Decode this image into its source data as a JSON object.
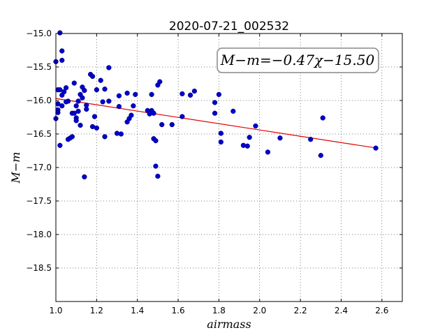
{
  "chart_data": {
    "type": "scatter",
    "title": "2020-07-21_002532",
    "xlabel": "airmass",
    "ylabel": "M−m",
    "xlim": [
      1.0,
      2.7
    ],
    "ylim": [
      -15.0,
      -19.0
    ],
    "y_inverted": true,
    "grid": true,
    "x_ticks": [
      "1.0",
      "1.2",
      "1.4",
      "1.6",
      "1.8",
      "2.0",
      "2.2",
      "2.4",
      "2.6"
    ],
    "y_ticks": [
      "−15.0",
      "−15.5",
      "−16.0",
      "−16.5",
      "−17.0",
      "−17.5",
      "−18.0",
      "−18.5"
    ],
    "annotation": "M−m=−0.47χ−15.50",
    "fit_line": {
      "slope": -0.47,
      "intercept": -15.5,
      "x_range": [
        1.0,
        2.57
      ],
      "color": "#e00000"
    },
    "point_color": "#0000cc",
    "points": [
      [
        1.0,
        -16.27
      ],
      [
        1.0,
        -15.42
      ],
      [
        1.01,
        -15.84
      ],
      [
        1.01,
        -16.14
      ],
      [
        1.01,
        -16.18
      ],
      [
        1.01,
        -16.05
      ],
      [
        1.02,
        -14.99
      ],
      [
        1.02,
        -15.84
      ],
      [
        1.02,
        -16.67
      ],
      [
        1.03,
        -15.92
      ],
      [
        1.03,
        -16.08
      ],
      [
        1.03,
        -15.26
      ],
      [
        1.03,
        -15.4
      ],
      [
        1.04,
        -15.87
      ],
      [
        1.05,
        -15.81
      ],
      [
        1.05,
        -16.02
      ],
      [
        1.06,
        -16.58
      ],
      [
        1.06,
        -16.01
      ],
      [
        1.07,
        -16.56
      ],
      [
        1.08,
        -16.54
      ],
      [
        1.08,
        -16.19
      ],
      [
        1.09,
        -16.19
      ],
      [
        1.09,
        -15.74
      ],
      [
        1.1,
        -16.26
      ],
      [
        1.1,
        -16.3
      ],
      [
        1.1,
        -16.08
      ],
      [
        1.11,
        -16.01
      ],
      [
        1.11,
        -16.16
      ],
      [
        1.12,
        -15.91
      ],
      [
        1.12,
        -16.37
      ],
      [
        1.13,
        -15.96
      ],
      [
        1.13,
        -15.8
      ],
      [
        1.14,
        -15.85
      ],
      [
        1.14,
        -17.14
      ],
      [
        1.15,
        -16.13
      ],
      [
        1.15,
        -16.07
      ],
      [
        1.17,
        -15.61
      ],
      [
        1.18,
        -15.64
      ],
      [
        1.18,
        -16.39
      ],
      [
        1.19,
        -16.24
      ],
      [
        1.2,
        -15.84
      ],
      [
        1.2,
        -16.41
      ],
      [
        1.22,
        -15.7
      ],
      [
        1.23,
        -16.02
      ],
      [
        1.24,
        -15.83
      ],
      [
        1.24,
        -16.54
      ],
      [
        1.26,
        -16.01
      ],
      [
        1.26,
        -15.51
      ],
      [
        1.3,
        -16.49
      ],
      [
        1.31,
        -16.09
      ],
      [
        1.31,
        -15.93
      ],
      [
        1.32,
        -16.5
      ],
      [
        1.35,
        -15.89
      ],
      [
        1.35,
        -16.32
      ],
      [
        1.36,
        -16.27
      ],
      [
        1.37,
        -16.22
      ],
      [
        1.38,
        -16.08
      ],
      [
        1.39,
        -15.91
      ],
      [
        1.45,
        -16.15
      ],
      [
        1.46,
        -16.2
      ],
      [
        1.47,
        -15.91
      ],
      [
        1.47,
        -16.15
      ],
      [
        1.48,
        -16.19
      ],
      [
        1.48,
        -16.57
      ],
      [
        1.49,
        -16.6
      ],
      [
        1.49,
        -16.98
      ],
      [
        1.5,
        -15.77
      ],
      [
        1.5,
        -17.13
      ],
      [
        1.51,
        -15.72
      ],
      [
        1.52,
        -16.36
      ],
      [
        1.57,
        -16.36
      ],
      [
        1.62,
        -15.9
      ],
      [
        1.62,
        -16.24
      ],
      [
        1.66,
        -15.92
      ],
      [
        1.68,
        -15.86
      ],
      [
        1.78,
        -16.03
      ],
      [
        1.78,
        -16.19
      ],
      [
        1.8,
        -15.91
      ],
      [
        1.81,
        -16.62
      ],
      [
        1.81,
        -16.49
      ],
      [
        1.87,
        -16.16
      ],
      [
        1.92,
        -16.67
      ],
      [
        1.94,
        -16.68
      ],
      [
        1.95,
        -16.55
      ],
      [
        1.98,
        -16.38
      ],
      [
        2.04,
        -16.77
      ],
      [
        2.1,
        -16.56
      ],
      [
        2.25,
        -16.58
      ],
      [
        2.3,
        -16.82
      ],
      [
        2.31,
        -16.26
      ],
      [
        2.57,
        -16.71
      ]
    ]
  }
}
